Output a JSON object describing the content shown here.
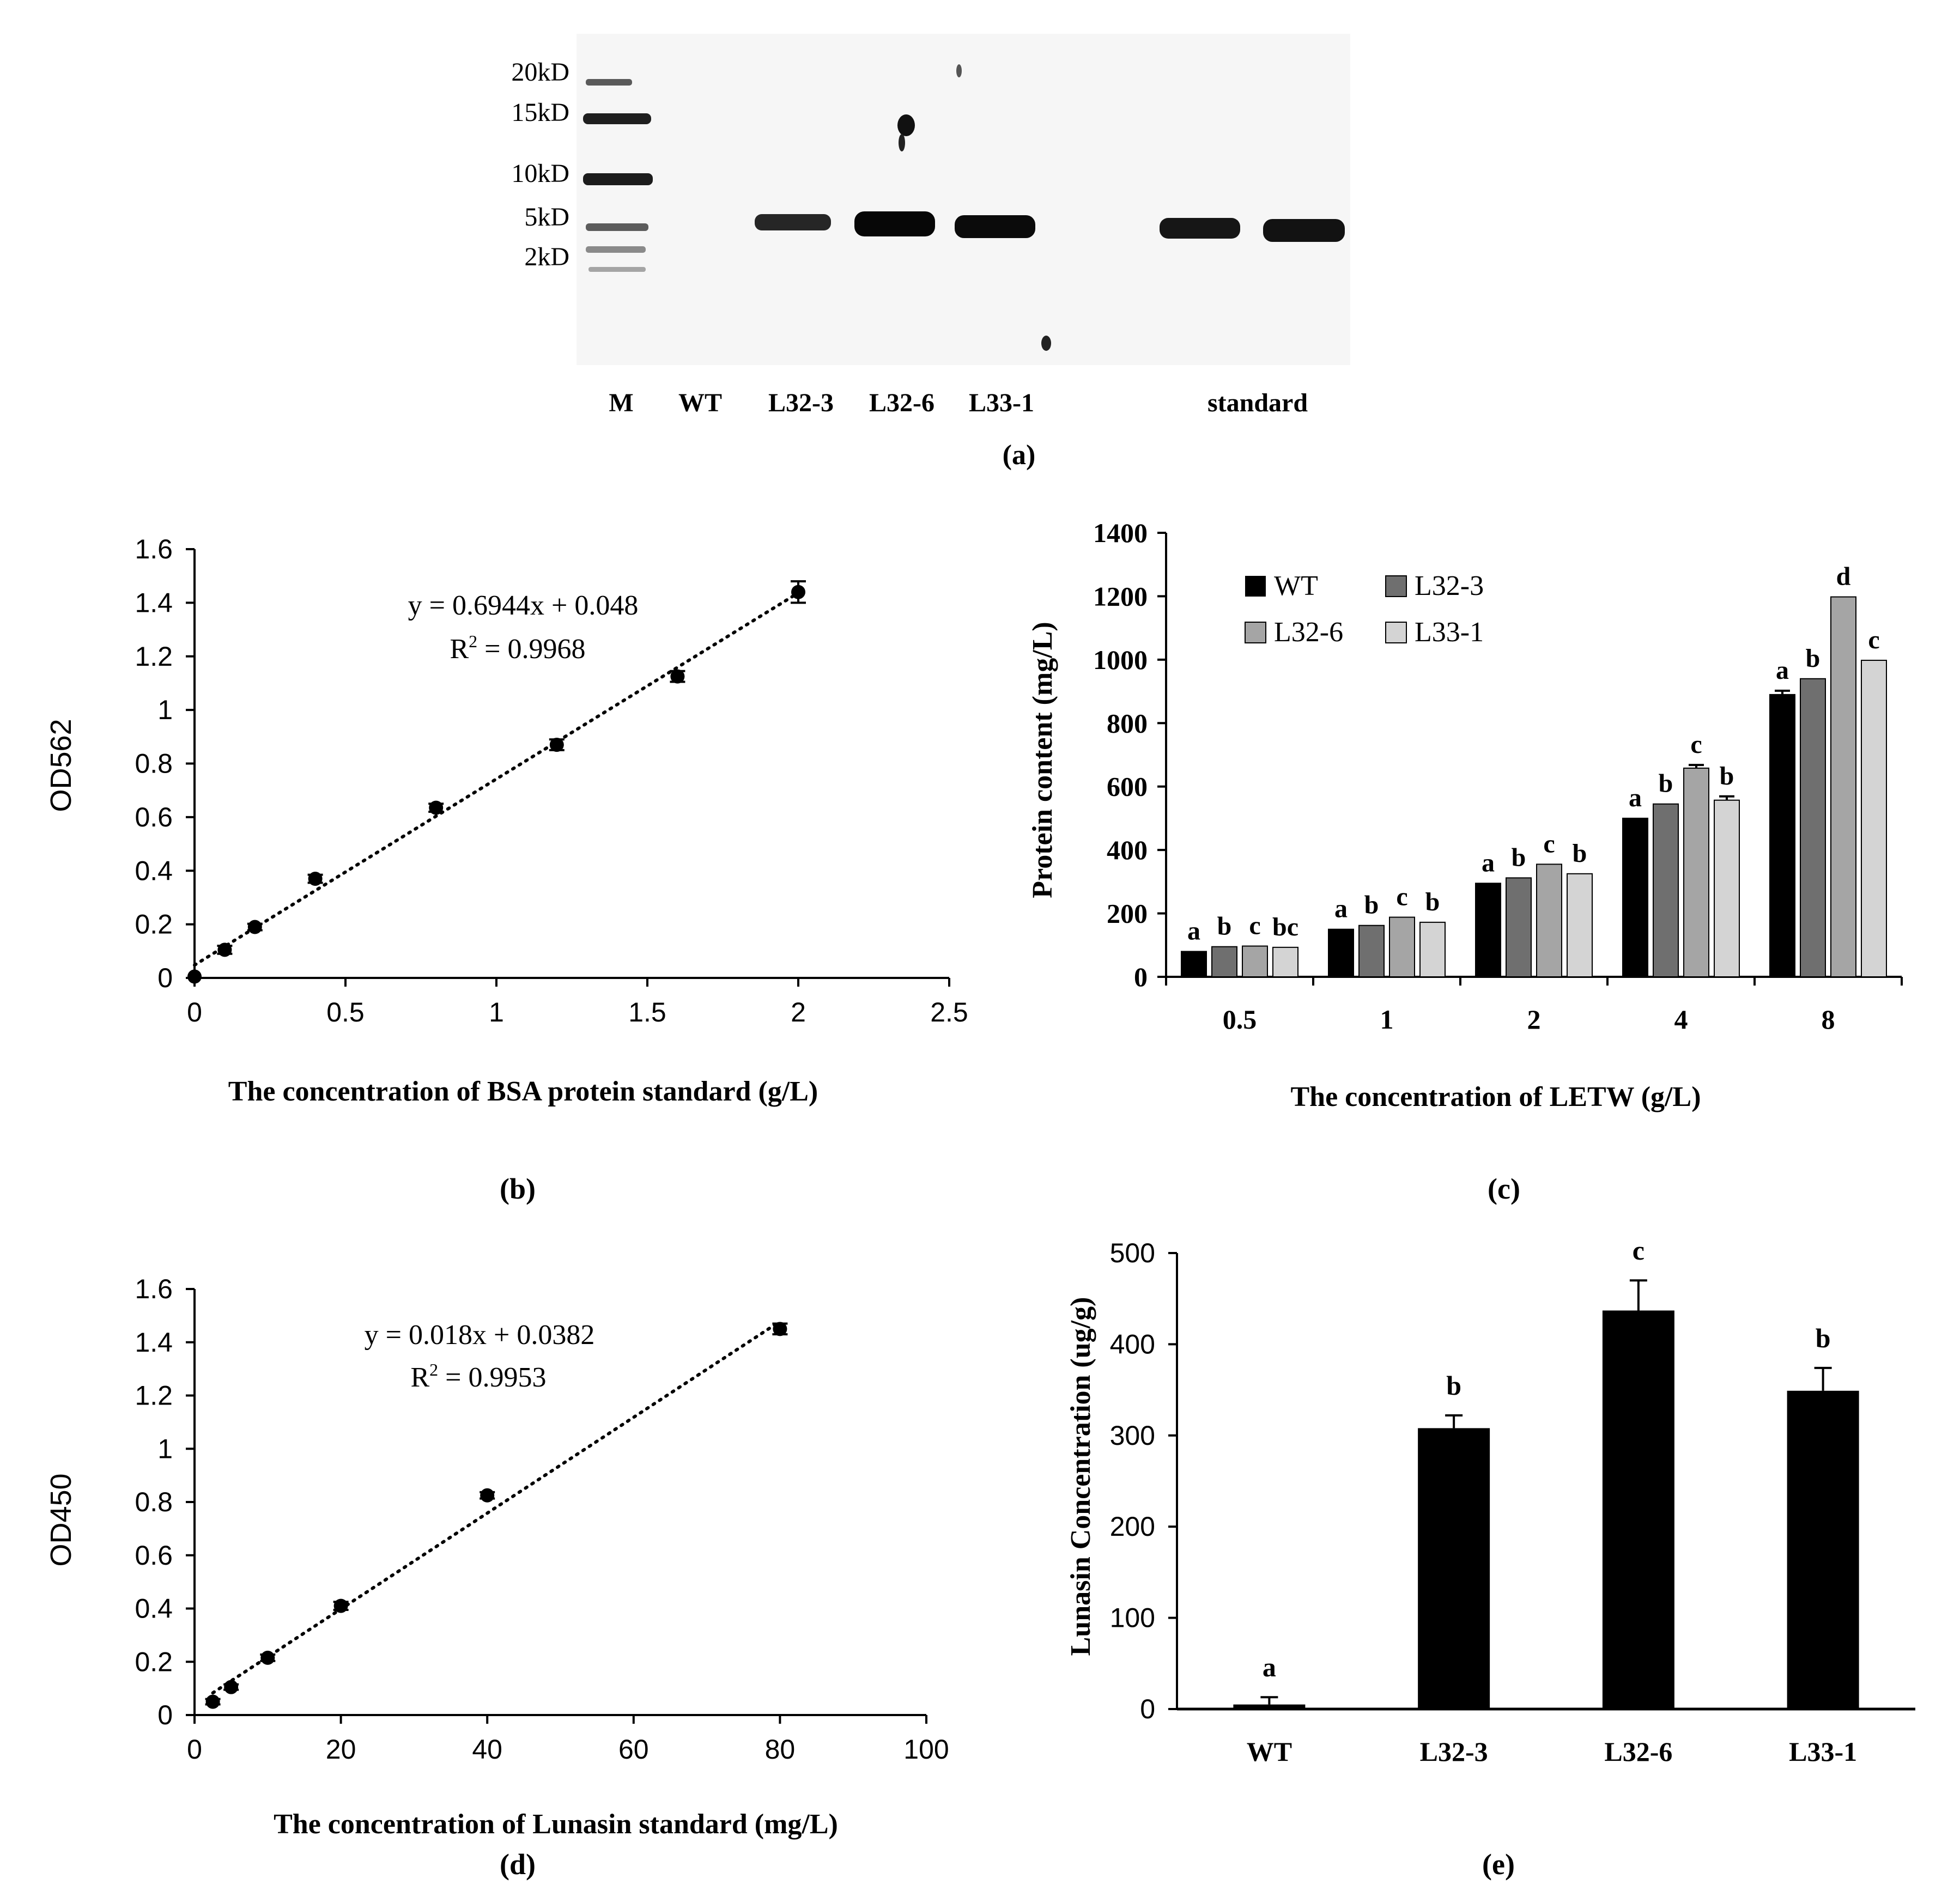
{
  "panel_labels": {
    "a": "(a)",
    "b": "(b)",
    "c": "(c)",
    "d": "(d)",
    "e": "(e)"
  },
  "chart_data": [
    {
      "id": "a",
      "type": "other",
      "description_type": "western-blot",
      "marker_labels": [
        "20kD",
        "15kD",
        "10kD",
        "5kD",
        "2kD"
      ],
      "lane_labels": [
        "M",
        "WT",
        "L32-3",
        "L32-6",
        "L33-1",
        "standard"
      ]
    },
    {
      "id": "b",
      "type": "scatter",
      "title": "",
      "xlabel": "The concentration of BSA protein standard (g/L)",
      "ylabel": "OD562",
      "xlim": [
        0,
        2.5
      ],
      "ylim": [
        0,
        1.6
      ],
      "xticks": [
        "0",
        "0.5",
        "1",
        "1.5",
        "2",
        "2.5"
      ],
      "yticks": [
        "0",
        "0.2",
        "0.4",
        "0.6",
        "0.8",
        "1",
        "1.2",
        "1.4",
        "1.6"
      ],
      "x": [
        0,
        0.1,
        0.2,
        0.4,
        0.8,
        1.2,
        1.6,
        2.0
      ],
      "y": [
        0.005,
        0.105,
        0.19,
        0.37,
        0.635,
        0.87,
        1.125,
        1.44
      ],
      "err": [
        0,
        0.015,
        0.012,
        0.015,
        0.015,
        0.02,
        0.02,
        0.04
      ],
      "trendline": {
        "slope": 0.6944,
        "intercept": 0.048
      },
      "equation": "y = 0.6944x + 0.048",
      "r2_prefix": "R",
      "r2_sup": "2",
      "r2_value": " = 0.9968"
    },
    {
      "id": "c",
      "type": "bar",
      "title": "",
      "xlabel": "The concentration of LETW (g/L)",
      "ylabel": "Protein content (mg/L)",
      "ylim": [
        0,
        1400
      ],
      "yticks": [
        "0",
        "200",
        "400",
        "600",
        "800",
        "1000",
        "1200",
        "1400"
      ],
      "categories": [
        "0.5",
        "1",
        "2",
        "4",
        "8"
      ],
      "series": [
        {
          "name": "WT",
          "color": "#000000",
          "values": [
            80,
            150,
            295,
            500,
            890
          ],
          "err": [
            0,
            0,
            0,
            0,
            12
          ]
        },
        {
          "name": "L32-3",
          "color": "#6f6f6f",
          "values": [
            95,
            162,
            312,
            545,
            940
          ],
          "err": [
            0,
            0,
            0,
            0,
            0
          ]
        },
        {
          "name": "L32-6",
          "color": "#a5a5a5",
          "values": [
            97,
            188,
            355,
            658,
            1198
          ],
          "err": [
            0,
            0,
            0,
            10,
            0
          ]
        },
        {
          "name": "L33-1",
          "color": "#d4d4d4",
          "values": [
            93,
            172,
            325,
            557,
            998
          ],
          "err": [
            0,
            0,
            0,
            12,
            0
          ]
        }
      ],
      "letters": [
        [
          "a",
          "b",
          "c",
          "bc"
        ],
        [
          "a",
          "b",
          "c",
          "b"
        ],
        [
          "a",
          "b",
          "c",
          "b"
        ],
        [
          "a",
          "b",
          "c",
          "b"
        ],
        [
          "a",
          "b",
          "d",
          "c"
        ]
      ],
      "legend_position": "top-left"
    },
    {
      "id": "d",
      "type": "scatter",
      "title": "",
      "xlabel": "The concentration of Lunasin standard (mg/L)",
      "ylabel": "OD450",
      "xlim": [
        0,
        100
      ],
      "ylim": [
        0,
        1.6
      ],
      "xticks": [
        "0",
        "20",
        "40",
        "60",
        "80",
        "100"
      ],
      "yticks": [
        "0",
        "0.2",
        "0.4",
        "0.6",
        "0.8",
        "1",
        "1.2",
        "1.4",
        "1.6"
      ],
      "x": [
        2.5,
        5,
        10,
        20,
        40,
        80
      ],
      "y": [
        0.05,
        0.105,
        0.215,
        0.41,
        0.825,
        1.45
      ],
      "err": [
        0.01,
        0.01,
        0.012,
        0.015,
        0.012,
        0.02
      ],
      "trendline": {
        "slope": 0.018,
        "intercept": 0.0382
      },
      "equation": "y = 0.018x + 0.0382",
      "r2_prefix": "R",
      "r2_sup": "2",
      "r2_value": " = 0.9953"
    },
    {
      "id": "e",
      "type": "bar",
      "title": "",
      "xlabel": "",
      "ylabel": "Lunasin Concentration (ug/g)",
      "ylim": [
        0,
        500
      ],
      "yticks": [
        "0",
        "100",
        "200",
        "300",
        "400",
        "500"
      ],
      "categories": [
        "WT",
        "L32-3",
        "L32-6",
        "L33-1"
      ],
      "values": [
        5,
        308,
        437,
        349
      ],
      "err": [
        8,
        14,
        33,
        25
      ],
      "letters": [
        "a",
        "b",
        "c",
        "b"
      ],
      "color": "#000000"
    }
  ]
}
